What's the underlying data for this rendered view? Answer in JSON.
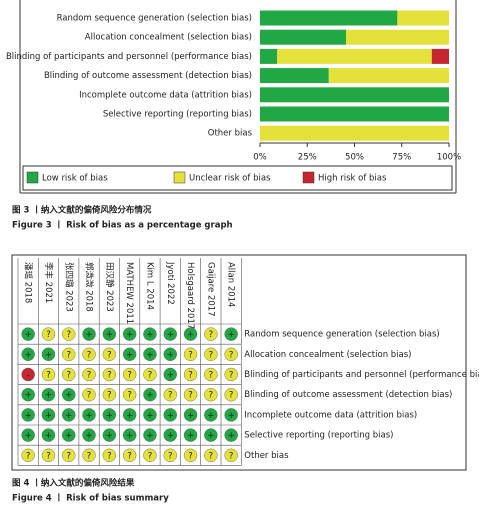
{
  "chart_data": [
    {
      "type": "bar",
      "orientation": "horizontal",
      "stacked": true,
      "categories": [
        "Random sequence generation (selection bias)",
        "Allocation concealment (selection bias)",
        "Blinding of participants and personnel (performance bias)",
        "Blinding of outcome assessment (detection bias)",
        "Incomplete outcome data (attrition bias)",
        "Selective reporting (reporting bias)",
        "Other bias"
      ],
      "series": [
        {
          "name": "Low risk of bias",
          "color": "#22a745",
          "values": [
            72.7,
            45.5,
            9.1,
            36.4,
            100,
            100,
            0
          ]
        },
        {
          "name": "Unclear risk of bias",
          "color": "#e4e23a",
          "values": [
            27.3,
            54.5,
            81.8,
            63.6,
            0,
            0,
            100
          ]
        },
        {
          "name": "High risk of bias",
          "color": "#c6262e",
          "values": [
            0,
            0,
            9.1,
            0,
            0,
            0,
            0
          ]
        }
      ],
      "xlim": [
        0,
        100
      ],
      "xticks": [
        {
          "value": 0,
          "label": "0%"
        },
        {
          "value": 25,
          "label": "25%"
        },
        {
          "value": 50,
          "label": "50%"
        },
        {
          "value": 75,
          "label": "75%"
        },
        {
          "value": 100,
          "label": "100%"
        }
      ],
      "legend": "bottom",
      "caption_cn": "图 3 丨纳入文献的偏倚风险分布情况",
      "caption_en": "Figure 3  丨  Risk of bias as a percentage graph"
    },
    {
      "type": "risk-of-bias-summary",
      "studies": [
        "潘瑶 2018",
        "李丰 2021",
        "张四璐 2023",
        "郭溦溦 2018",
        "田汉静 2023",
        "MATHEW 2011",
        "Kim L 2014",
        "Jyoti 2022",
        "Holsgaard 2017",
        "Gaijare 2017",
        "Allan 2014"
      ],
      "domains": [
        "Random sequence generation (selection bias)",
        "Allocation concealment (selection bias)",
        "Blinding of participants and personnel (performance bias)",
        "Blinding of outcome assessment (detection bias)",
        "Incomplete outcome data (attrition bias)",
        "Selective reporting (reporting bias)",
        "Other bias"
      ],
      "judgements": [
        [
          "+",
          "?",
          "?",
          "+",
          "+",
          "+",
          "+",
          "+",
          "+",
          "?",
          "+"
        ],
        [
          "+",
          "+",
          "?",
          "?",
          "?",
          "+",
          "+",
          "+",
          "?",
          "?",
          "?"
        ],
        [
          "-",
          "?",
          "?",
          "?",
          "?",
          "?",
          "?",
          "+",
          "?",
          "?",
          "?"
        ],
        [
          "+",
          "+",
          "+",
          "?",
          "?",
          "?",
          "+",
          "?",
          "?",
          "?",
          "?"
        ],
        [
          "+",
          "+",
          "+",
          "+",
          "+",
          "+",
          "+",
          "+",
          "+",
          "+",
          "+"
        ],
        [
          "+",
          "+",
          "+",
          "+",
          "+",
          "+",
          "+",
          "+",
          "+",
          "+",
          "+"
        ],
        [
          "?",
          "?",
          "?",
          "?",
          "?",
          "?",
          "?",
          "?",
          "?",
          "?",
          "?"
        ]
      ],
      "colors": {
        "+": "#22a745",
        "?": "#e4e23a",
        "-": "#c6262e"
      },
      "caption_cn": "图 4 丨纳入文献的偏倚风险结果",
      "caption_en": "Figure 4  丨  Risk of bias summary"
    }
  ]
}
